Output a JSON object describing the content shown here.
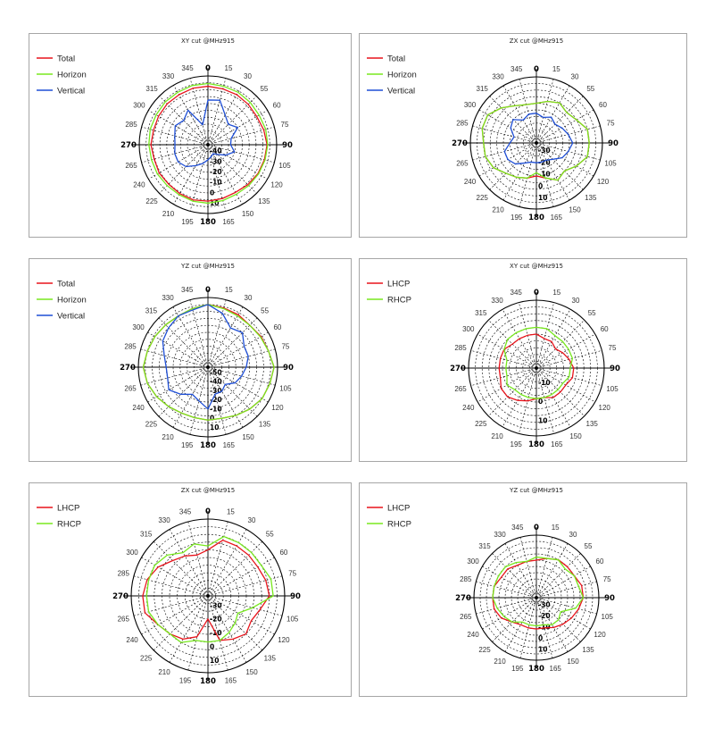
{
  "colors": {
    "red": "#e8141c",
    "green": "#78e81e",
    "blue": "#1f4fd6",
    "grid": "#000000"
  },
  "chart_data": [
    {
      "type": "polar-line",
      "title": "XY cut @MHz915",
      "angle_ticks": [
        "0",
        "15",
        "30",
        "55",
        "60",
        "75",
        "90",
        "105",
        "120",
        "135",
        "150",
        "165",
        "180",
        "195",
        "210",
        "225",
        "240",
        "265",
        "270",
        "285",
        "300",
        "315",
        "330",
        "345"
      ],
      "radial_ticks": [
        "-40",
        "-30",
        "-20",
        "-10",
        "0",
        "10"
      ],
      "series": [
        {
          "name": "Total",
          "color": "red",
          "values": [
            8.5,
            8.4,
            8.4,
            8.3,
            8.2,
            8.4,
            8.6,
            8.5,
            8.4,
            8.2,
            8.0,
            8.1,
            8.2,
            8.3,
            8.2,
            8.1,
            8.2,
            8.1,
            8.3,
            8.2,
            8.3,
            8.4,
            8.4,
            8.5
          ]
        },
        {
          "name": "Horizon",
          "color": "green",
          "values": [
            8.9,
            8.8,
            8.8,
            8.7,
            8.6,
            8.7,
            8.7,
            8.6,
            8.5,
            8.4,
            8.3,
            8.4,
            8.5,
            8.5,
            8.4,
            8.4,
            8.5,
            8.5,
            8.6,
            8.7,
            8.7,
            8.8,
            8.8,
            8.9
          ]
        },
        {
          "name": "Vertical",
          "color": "blue",
          "values": [
            6.5,
            6.7,
            5.0,
            4.2,
            5.0,
            3.5,
            3.3,
            4.0,
            3.0,
            2.0,
            1.5,
            1.8,
            2.2,
            2.8,
            3.5,
            4.5,
            5.0,
            5.0,
            4.8,
            5.0,
            5.5,
            5.0,
            5.8,
            3.0
          ]
        }
      ]
    },
    {
      "type": "polar-line",
      "title": "ZX cut @MHz915",
      "angle_ticks": [
        "0",
        "15",
        "30",
        "55",
        "60",
        "75",
        "90",
        "105",
        "120",
        "135",
        "150",
        "165",
        "180",
        "195",
        "210",
        "225",
        "240",
        "265",
        "270",
        "285",
        "300",
        "315",
        "330",
        "345"
      ],
      "radial_ticks": [
        "-30",
        "-20",
        "-10",
        "0",
        "10"
      ],
      "series": [
        {
          "name": "Total",
          "color": "red",
          "values": [
            6.0,
            6.5,
            7.0,
            6.5,
            7.0,
            8.0,
            8.0,
            8.0,
            7.0,
            6.0,
            6.5,
            5.5,
            5.0,
            5.5,
            6.0,
            6.5,
            7.5,
            8.0,
            8.0,
            8.5,
            8.5,
            7.5,
            6.5,
            6.0
          ]
        },
        {
          "name": "Horizon",
          "color": "green",
          "values": [
            6.0,
            6.5,
            7.0,
            6.5,
            7.0,
            8.0,
            8.0,
            8.0,
            7.0,
            6.0,
            6.5,
            5.5,
            4.5,
            5.5,
            6.0,
            6.5,
            7.5,
            8.0,
            8.0,
            8.5,
            8.5,
            7.5,
            6.5,
            6.0
          ]
        },
        {
          "name": "Vertical",
          "color": "blue",
          "values": [
            4.5,
            4.0,
            4.5,
            4.0,
            4.5,
            5.0,
            5.5,
            5.0,
            4.5,
            3.5,
            3.0,
            3.0,
            3.0,
            3.0,
            3.5,
            4.5,
            5.0,
            5.0,
            4.0,
            3.5,
            4.5,
            5.0,
            4.0,
            4.5
          ]
        }
      ]
    },
    {
      "type": "polar-line",
      "title": "YZ cut @MHz915",
      "angle_ticks": [
        "0",
        "15",
        "30",
        "55",
        "60",
        "75",
        "90",
        "105",
        "120",
        "135",
        "150",
        "165",
        "180",
        "195",
        "210",
        "225",
        "240",
        "265",
        "270",
        "285",
        "300",
        "315",
        "330",
        "345"
      ],
      "radial_ticks": [
        "-50",
        "-40",
        "-30",
        "-20",
        "-10",
        "0",
        "10"
      ],
      "series": [
        {
          "name": "Total",
          "color": "red",
          "values": [
            9.0,
            8.8,
            8.7,
            8.5,
            8.8,
            9.0,
            9.5,
            9.2,
            9.0,
            8.5,
            8.0,
            7.6,
            7.6,
            7.5,
            7.6,
            8.0,
            8.5,
            9.0,
            9.3,
            9.0,
            8.8,
            8.6,
            8.5,
            8.7
          ]
        },
        {
          "name": "Horizon",
          "color": "green",
          "values": [
            9.0,
            8.7,
            8.5,
            8.5,
            8.7,
            9.0,
            9.5,
            9.2,
            9.0,
            8.5,
            8.0,
            7.6,
            7.6,
            7.5,
            7.6,
            8.0,
            8.5,
            9.0,
            9.3,
            9.0,
            8.8,
            8.6,
            8.5,
            8.7
          ]
        },
        {
          "name": "Vertical",
          "color": "blue",
          "values": [
            9.0,
            8.0,
            6.5,
            7.0,
            6.0,
            6.0,
            5.5,
            5.0,
            4.5,
            3.5,
            4.0,
            4.0,
            6.0,
            5.0,
            4.5,
            5.5,
            6.5,
            6.0,
            6.0,
            6.5,
            7.5,
            8.0,
            8.5,
            8.5
          ]
        }
      ]
    },
    {
      "type": "polar-line",
      "title": "XY cut @MHz915",
      "angle_ticks": [
        "0",
        "15",
        "30",
        "55",
        "60",
        "75",
        "90",
        "105",
        "120",
        "135",
        "150",
        "165",
        "180",
        "195",
        "210",
        "225",
        "240",
        "265",
        "270",
        "285",
        "300",
        "315",
        "330",
        "345"
      ],
      "radial_ticks": [
        "-10",
        "0",
        "10"
      ],
      "series": [
        {
          "name": "LHCP",
          "color": "red",
          "values": [
            5.0,
            4.5,
            4.5,
            4.0,
            4.5,
            5.0,
            5.5,
            5.5,
            5.0,
            5.0,
            5.0,
            4.5,
            4.5,
            5.0,
            5.5,
            6.0,
            6.0,
            5.5,
            5.5,
            5.5,
            5.5,
            5.0,
            5.0,
            5.0
          ]
        },
        {
          "name": "RHCP",
          "color": "green",
          "values": [
            6.0,
            6.0,
            5.5,
            5.5,
            5.5,
            5.5,
            5.0,
            5.0,
            4.5,
            4.5,
            4.5,
            4.5,
            4.5,
            4.5,
            4.5,
            4.5,
            5.0,
            4.5,
            4.5,
            4.5,
            5.5,
            6.0,
            6.0,
            6.0
          ]
        }
      ]
    },
    {
      "type": "polar-line",
      "title": "ZX cut @MHz915",
      "angle_ticks": [
        "0",
        "15",
        "30",
        "55",
        "60",
        "75",
        "90",
        "105",
        "120",
        "135",
        "150",
        "165",
        "180",
        "195",
        "210",
        "225",
        "240",
        "265",
        "270",
        "285",
        "300",
        "315",
        "330",
        "345"
      ],
      "radial_ticks": [
        "-30",
        "-20",
        "-10",
        "0",
        "10"
      ],
      "series": [
        {
          "name": "LHCP",
          "color": "red",
          "values": [
            6.0,
            7.5,
            7.5,
            7.5,
            7.5,
            7.8,
            8.0,
            7.0,
            6.5,
            7.0,
            6.5,
            6.0,
            3.0,
            5.5,
            6.5,
            7.0,
            7.5,
            8.5,
            8.5,
            8.2,
            7.5,
            6.5,
            6.0,
            5.5
          ]
        },
        {
          "name": "RHCP",
          "color": "green",
          "values": [
            6.5,
            8.0,
            8.0,
            8.0,
            8.0,
            8.5,
            8.5,
            6.0,
            4.5,
            5.0,
            5.5,
            6.0,
            6.0,
            6.0,
            7.0,
            7.0,
            7.5,
            8.0,
            8.0,
            8.0,
            8.0,
            7.5,
            6.5,
            7.0
          ]
        }
      ]
    },
    {
      "type": "polar-line",
      "title": "YZ cut @MHz915",
      "angle_ticks": [
        "0",
        "15",
        "30",
        "55",
        "60",
        "75",
        "90",
        "105",
        "120",
        "135",
        "150",
        "165",
        "180",
        "195",
        "210",
        "225",
        "240",
        "265",
        "270",
        "285",
        "300",
        "315",
        "330",
        "345"
      ],
      "radial_ticks": [
        "-30",
        "-20",
        "-10",
        "0",
        "10"
      ],
      "series": [
        {
          "name": "LHCP",
          "color": "red",
          "values": [
            6.0,
            6.5,
            7.0,
            7.0,
            7.0,
            7.5,
            7.5,
            7.0,
            6.5,
            6.0,
            5.5,
            5.0,
            5.0,
            5.0,
            5.0,
            5.5,
            6.5,
            7.0,
            7.0,
            7.0,
            6.5,
            6.5,
            6.0,
            6.0
          ]
        },
        {
          "name": "RHCP",
          "color": "green",
          "values": [
            6.5,
            6.5,
            7.0,
            6.5,
            7.0,
            7.0,
            7.5,
            6.5,
            4.5,
            5.0,
            5.0,
            4.5,
            4.5,
            4.5,
            4.5,
            5.5,
            6.0,
            6.5,
            7.0,
            7.0,
            7.0,
            7.0,
            6.5,
            6.0
          ]
        }
      ]
    }
  ]
}
